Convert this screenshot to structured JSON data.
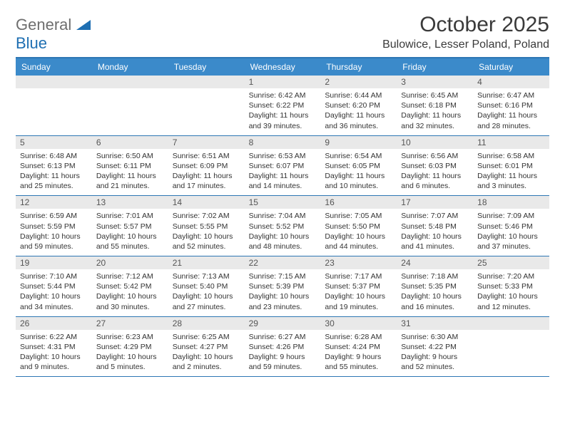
{
  "logo": {
    "text1": "General",
    "text2": "Blue"
  },
  "title": "October 2025",
  "subtitle": "Bulowice, Lesser Poland, Poland",
  "day_headers": [
    "Sunday",
    "Monday",
    "Tuesday",
    "Wednesday",
    "Thursday",
    "Friday",
    "Saturday"
  ],
  "colors": {
    "header_bg": "#3b8aca",
    "rule": "#2e77b4",
    "daynum_bg": "#e9e9e9",
    "text": "#333333"
  },
  "weeks": [
    [
      {
        "blank": true
      },
      {
        "blank": true
      },
      {
        "blank": true
      },
      {
        "day": "1",
        "sunrise": "Sunrise: 6:42 AM",
        "sunset": "Sunset: 6:22 PM",
        "daylight1": "Daylight: 11 hours",
        "daylight2": "and 39 minutes."
      },
      {
        "day": "2",
        "sunrise": "Sunrise: 6:44 AM",
        "sunset": "Sunset: 6:20 PM",
        "daylight1": "Daylight: 11 hours",
        "daylight2": "and 36 minutes."
      },
      {
        "day": "3",
        "sunrise": "Sunrise: 6:45 AM",
        "sunset": "Sunset: 6:18 PM",
        "daylight1": "Daylight: 11 hours",
        "daylight2": "and 32 minutes."
      },
      {
        "day": "4",
        "sunrise": "Sunrise: 6:47 AM",
        "sunset": "Sunset: 6:16 PM",
        "daylight1": "Daylight: 11 hours",
        "daylight2": "and 28 minutes."
      }
    ],
    [
      {
        "day": "5",
        "sunrise": "Sunrise: 6:48 AM",
        "sunset": "Sunset: 6:13 PM",
        "daylight1": "Daylight: 11 hours",
        "daylight2": "and 25 minutes."
      },
      {
        "day": "6",
        "sunrise": "Sunrise: 6:50 AM",
        "sunset": "Sunset: 6:11 PM",
        "daylight1": "Daylight: 11 hours",
        "daylight2": "and 21 minutes."
      },
      {
        "day": "7",
        "sunrise": "Sunrise: 6:51 AM",
        "sunset": "Sunset: 6:09 PM",
        "daylight1": "Daylight: 11 hours",
        "daylight2": "and 17 minutes."
      },
      {
        "day": "8",
        "sunrise": "Sunrise: 6:53 AM",
        "sunset": "Sunset: 6:07 PM",
        "daylight1": "Daylight: 11 hours",
        "daylight2": "and 14 minutes."
      },
      {
        "day": "9",
        "sunrise": "Sunrise: 6:54 AM",
        "sunset": "Sunset: 6:05 PM",
        "daylight1": "Daylight: 11 hours",
        "daylight2": "and 10 minutes."
      },
      {
        "day": "10",
        "sunrise": "Sunrise: 6:56 AM",
        "sunset": "Sunset: 6:03 PM",
        "daylight1": "Daylight: 11 hours",
        "daylight2": "and 6 minutes."
      },
      {
        "day": "11",
        "sunrise": "Sunrise: 6:58 AM",
        "sunset": "Sunset: 6:01 PM",
        "daylight1": "Daylight: 11 hours",
        "daylight2": "and 3 minutes."
      }
    ],
    [
      {
        "day": "12",
        "sunrise": "Sunrise: 6:59 AM",
        "sunset": "Sunset: 5:59 PM",
        "daylight1": "Daylight: 10 hours",
        "daylight2": "and 59 minutes."
      },
      {
        "day": "13",
        "sunrise": "Sunrise: 7:01 AM",
        "sunset": "Sunset: 5:57 PM",
        "daylight1": "Daylight: 10 hours",
        "daylight2": "and 55 minutes."
      },
      {
        "day": "14",
        "sunrise": "Sunrise: 7:02 AM",
        "sunset": "Sunset: 5:55 PM",
        "daylight1": "Daylight: 10 hours",
        "daylight2": "and 52 minutes."
      },
      {
        "day": "15",
        "sunrise": "Sunrise: 7:04 AM",
        "sunset": "Sunset: 5:52 PM",
        "daylight1": "Daylight: 10 hours",
        "daylight2": "and 48 minutes."
      },
      {
        "day": "16",
        "sunrise": "Sunrise: 7:05 AM",
        "sunset": "Sunset: 5:50 PM",
        "daylight1": "Daylight: 10 hours",
        "daylight2": "and 44 minutes."
      },
      {
        "day": "17",
        "sunrise": "Sunrise: 7:07 AM",
        "sunset": "Sunset: 5:48 PM",
        "daylight1": "Daylight: 10 hours",
        "daylight2": "and 41 minutes."
      },
      {
        "day": "18",
        "sunrise": "Sunrise: 7:09 AM",
        "sunset": "Sunset: 5:46 PM",
        "daylight1": "Daylight: 10 hours",
        "daylight2": "and 37 minutes."
      }
    ],
    [
      {
        "day": "19",
        "sunrise": "Sunrise: 7:10 AM",
        "sunset": "Sunset: 5:44 PM",
        "daylight1": "Daylight: 10 hours",
        "daylight2": "and 34 minutes."
      },
      {
        "day": "20",
        "sunrise": "Sunrise: 7:12 AM",
        "sunset": "Sunset: 5:42 PM",
        "daylight1": "Daylight: 10 hours",
        "daylight2": "and 30 minutes."
      },
      {
        "day": "21",
        "sunrise": "Sunrise: 7:13 AM",
        "sunset": "Sunset: 5:40 PM",
        "daylight1": "Daylight: 10 hours",
        "daylight2": "and 27 minutes."
      },
      {
        "day": "22",
        "sunrise": "Sunrise: 7:15 AM",
        "sunset": "Sunset: 5:39 PM",
        "daylight1": "Daylight: 10 hours",
        "daylight2": "and 23 minutes."
      },
      {
        "day": "23",
        "sunrise": "Sunrise: 7:17 AM",
        "sunset": "Sunset: 5:37 PM",
        "daylight1": "Daylight: 10 hours",
        "daylight2": "and 19 minutes."
      },
      {
        "day": "24",
        "sunrise": "Sunrise: 7:18 AM",
        "sunset": "Sunset: 5:35 PM",
        "daylight1": "Daylight: 10 hours",
        "daylight2": "and 16 minutes."
      },
      {
        "day": "25",
        "sunrise": "Sunrise: 7:20 AM",
        "sunset": "Sunset: 5:33 PM",
        "daylight1": "Daylight: 10 hours",
        "daylight2": "and 12 minutes."
      }
    ],
    [
      {
        "day": "26",
        "sunrise": "Sunrise: 6:22 AM",
        "sunset": "Sunset: 4:31 PM",
        "daylight1": "Daylight: 10 hours",
        "daylight2": "and 9 minutes."
      },
      {
        "day": "27",
        "sunrise": "Sunrise: 6:23 AM",
        "sunset": "Sunset: 4:29 PM",
        "daylight1": "Daylight: 10 hours",
        "daylight2": "and 5 minutes."
      },
      {
        "day": "28",
        "sunrise": "Sunrise: 6:25 AM",
        "sunset": "Sunset: 4:27 PM",
        "daylight1": "Daylight: 10 hours",
        "daylight2": "and 2 minutes."
      },
      {
        "day": "29",
        "sunrise": "Sunrise: 6:27 AM",
        "sunset": "Sunset: 4:26 PM",
        "daylight1": "Daylight: 9 hours",
        "daylight2": "and 59 minutes."
      },
      {
        "day": "30",
        "sunrise": "Sunrise: 6:28 AM",
        "sunset": "Sunset: 4:24 PM",
        "daylight1": "Daylight: 9 hours",
        "daylight2": "and 55 minutes."
      },
      {
        "day": "31",
        "sunrise": "Sunrise: 6:30 AM",
        "sunset": "Sunset: 4:22 PM",
        "daylight1": "Daylight: 9 hours",
        "daylight2": "and 52 minutes."
      },
      {
        "blank": true
      }
    ]
  ]
}
